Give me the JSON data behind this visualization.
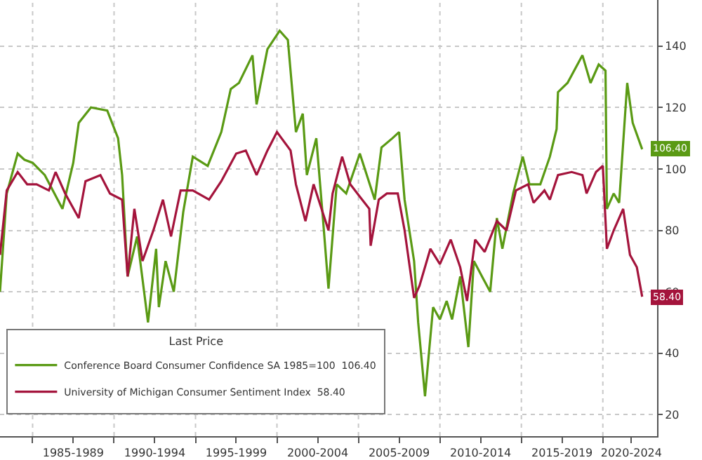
{
  "chart_data": {
    "type": "line",
    "legend_title": "Last Price",
    "legend": "bottom left",
    "grid": true,
    "line_style": "solid",
    "marker": "none",
    "xlim": [
      "1983-01",
      "2023-05"
    ],
    "ylim": [
      13,
      155
    ],
    "xticks": [
      {
        "value": "1985-01",
        "label": null
      },
      {
        "value": "1987-07",
        "label": "1985-1989"
      },
      {
        "value": "1990-01",
        "label": null
      },
      {
        "value": "1992-07",
        "label": "1990-1994"
      },
      {
        "value": "1995-01",
        "label": null
      },
      {
        "value": "1997-07",
        "label": "1995-1999"
      },
      {
        "value": "2000-01",
        "label": null
      },
      {
        "value": "2002-07",
        "label": "2000-2004"
      },
      {
        "value": "2005-01",
        "label": null
      },
      {
        "value": "2007-07",
        "label": "2005-2009"
      },
      {
        "value": "2010-01",
        "label": null
      },
      {
        "value": "2012-07",
        "label": "2010-2014"
      },
      {
        "value": "2015-01",
        "label": null
      },
      {
        "value": "2017-07",
        "label": "2015-2019"
      },
      {
        "value": "2020-01",
        "label": null
      },
      {
        "value": "2021-10",
        "label": "2020-2024"
      }
    ],
    "yticks": [
      20,
      40,
      60,
      80,
      100,
      120,
      140
    ],
    "series": [
      {
        "name": "Conference Board Consumer Confidence SA 1985=100  106.40",
        "color": "#5a9a14",
        "x": [
          "1983-01",
          "1983-06",
          "1984-02",
          "1984-07",
          "1985-01",
          "1985-10",
          "1986-11",
          "1987-07",
          "1987-11",
          "1988-08",
          "1989-08",
          "1990-04",
          "1990-07",
          "1990-11",
          "1991-06",
          "1992-02",
          "1992-08",
          "1992-10",
          "1993-03",
          "1993-09",
          "1994-04",
          "1994-11",
          "1995-10",
          "1996-08",
          "1997-03",
          "1997-09",
          "1998-07",
          "1998-10",
          "1999-06",
          "2000-03",
          "2000-09",
          "2001-03",
          "2001-08",
          "2001-11",
          "2002-06",
          "2002-11",
          "2003-03",
          "2003-09",
          "2004-04",
          "2005-02",
          "2006-01",
          "2006-06",
          "2007-02",
          "2007-07",
          "2007-11",
          "2008-06",
          "2008-09",
          "2009-02",
          "2009-08",
          "2010-01",
          "2010-06",
          "2010-10",
          "2011-04",
          "2011-10",
          "2012-02",
          "2012-08",
          "2013-02",
          "2013-07",
          "2013-11",
          "2014-07",
          "2015-02",
          "2015-07",
          "2016-03",
          "2016-10",
          "2017-03",
          "2017-04",
          "2017-11",
          "2018-10",
          "2019-04",
          "2019-10",
          "2020-03",
          "2020-04",
          "2020-09",
          "2021-01",
          "2021-07",
          "2021-11",
          "2022-06"
        ],
        "values": [
          60,
          92,
          105,
          103,
          102,
          98,
          87,
          102,
          115,
          120,
          119,
          110,
          98,
          65,
          78,
          50,
          74,
          55,
          70,
          60,
          86,
          104,
          101,
          112,
          126,
          128,
          137,
          121,
          139,
          145,
          142,
          112,
          118,
          98,
          110,
          83,
          61,
          95,
          92,
          105,
          90,
          107,
          110,
          112,
          90,
          70,
          50,
          26,
          55,
          51,
          57,
          51,
          65,
          42,
          70,
          65,
          60,
          84,
          74,
          92,
          104,
          95,
          95,
          104,
          113,
          125,
          128,
          137,
          128,
          134,
          132,
          87,
          92,
          89,
          128,
          115,
          106.4
        ]
      },
      {
        "name": "University of Michigan Consumer Sentiment Index  58.40",
        "color": "#a4143c",
        "x": [
          "1983-01",
          "1983-06",
          "1984-02",
          "1984-09",
          "1985-04",
          "1986-01",
          "1986-06",
          "1987-01",
          "1987-11",
          "1988-04",
          "1989-03",
          "1989-10",
          "1990-07",
          "1990-11",
          "1991-04",
          "1991-10",
          "1992-06",
          "1993-01",
          "1993-07",
          "1994-02",
          "1994-11",
          "1995-11",
          "1996-08",
          "1997-07",
          "1998-02",
          "1998-10",
          "1999-06",
          "2000-01",
          "2000-11",
          "2001-03",
          "2001-10",
          "2002-04",
          "2003-03",
          "2003-06",
          "2004-01",
          "2004-07",
          "2005-09",
          "2005-10",
          "2006-04",
          "2006-10",
          "2007-06",
          "2007-11",
          "2008-06",
          "2008-10",
          "2009-06",
          "2010-01",
          "2010-09",
          "2011-04",
          "2011-09",
          "2012-03",
          "2012-10",
          "2013-07",
          "2014-02",
          "2014-09",
          "2015-06",
          "2015-10",
          "2016-06",
          "2016-10",
          "2017-04",
          "2018-02",
          "2018-10",
          "2019-01",
          "2019-08",
          "2020-01",
          "2020-04",
          "2020-09",
          "2021-04",
          "2021-09",
          "2022-02",
          "2022-06"
        ],
        "values": [
          72,
          93,
          99,
          95,
          95,
          93,
          99,
          92,
          84,
          96,
          98,
          92,
          90,
          65,
          87,
          70,
          80,
          90,
          78,
          93,
          93,
          90,
          96,
          105,
          106,
          98,
          106,
          112,
          106,
          95,
          83,
          95,
          80,
          92,
          104,
          95,
          87,
          75,
          90,
          92,
          92,
          80,
          58,
          62,
          74,
          69,
          77,
          68,
          57,
          77,
          73,
          83,
          80,
          93,
          95,
          89,
          93,
          90,
          98,
          99,
          98,
          92,
          99,
          101,
          74,
          80,
          87,
          72,
          68,
          58.4
        ]
      }
    ],
    "annotations": [
      {
        "text": "106.40",
        "x": "2022-06",
        "y": 106.4
      },
      {
        "text": "58.40",
        "x": "2022-06",
        "y": 58.4
      }
    ]
  }
}
